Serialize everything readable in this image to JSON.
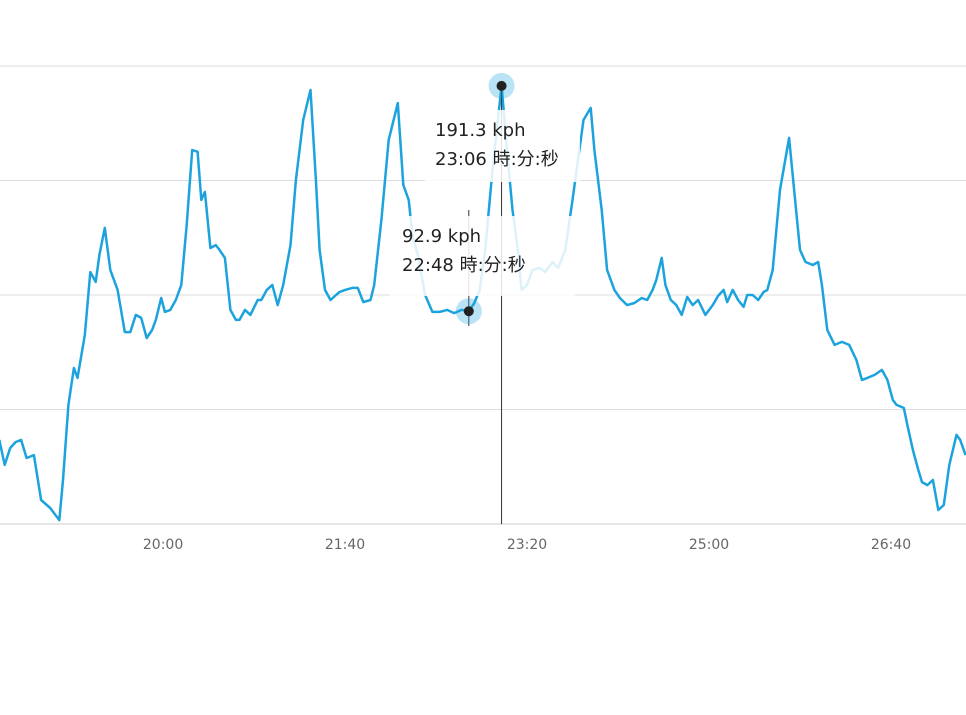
{
  "chart_data": {
    "type": "line",
    "color": "#1ca3dd",
    "grid": true,
    "xlim": [
      1110.4,
      1641.2
    ],
    "ylim": [
      0,
      228.8
    ],
    "yticks": [
      0,
      50,
      100,
      150,
      200
    ],
    "xticks": [
      {
        "value": 1200,
        "label": "20:00"
      },
      {
        "value": 1300,
        "label": "21:40"
      },
      {
        "value": 1400,
        "label": "23:20"
      },
      {
        "value": 1500,
        "label": "25:00"
      },
      {
        "value": 1600,
        "label": "26:40"
      }
    ],
    "x": [
      1110,
      1113,
      1116,
      1119,
      1122,
      1125,
      1129,
      1133,
      1138,
      1143,
      1145,
      1148,
      1151,
      1153,
      1157,
      1160,
      1163,
      1165,
      1168,
      1171,
      1175,
      1179,
      1182,
      1185,
      1188,
      1191,
      1194,
      1196,
      1199,
      1201,
      1204,
      1207,
      1210,
      1213,
      1216,
      1219,
      1221,
      1223,
      1226,
      1229,
      1231,
      1234,
      1237,
      1240,
      1242,
      1245,
      1248,
      1252,
      1254,
      1257,
      1260,
      1263,
      1266,
      1270,
      1273,
      1277,
      1281,
      1284,
      1286,
      1289,
      1292,
      1295,
      1297,
      1300,
      1304,
      1307,
      1310,
      1314,
      1316,
      1320,
      1324,
      1329,
      1332,
      1335,
      1337,
      1340,
      1344,
      1348,
      1352,
      1356,
      1360,
      1364,
      1368,
      1371,
      1374,
      1377,
      1381,
      1386,
      1389,
      1392,
      1395,
      1397,
      1400,
      1403,
      1407,
      1410,
      1414,
      1417,
      1421,
      1425,
      1428,
      1431,
      1435,
      1437,
      1441,
      1444,
      1448,
      1451,
      1455,
      1459,
      1463,
      1466,
      1469,
      1471,
      1474,
      1476,
      1479,
      1482,
      1485,
      1488,
      1491,
      1494,
      1498,
      1502,
      1505,
      1508,
      1510,
      1513,
      1516,
      1519,
      1521,
      1524,
      1527,
      1530,
      1532,
      1535,
      1539,
      1544,
      1547,
      1550,
      1553,
      1557,
      1560,
      1562,
      1565,
      1569,
      1573,
      1577,
      1581,
      1584,
      1587,
      1591,
      1595,
      1598,
      1601,
      1603,
      1607,
      1609,
      1612,
      1615,
      1617,
      1620,
      1623,
      1626,
      1629,
      1632,
      1636,
      1638,
      1641
    ],
    "values": [
      36.7,
      25.8,
      33.2,
      35.8,
      36.7,
      28.8,
      30.1,
      10.5,
      7.0,
      1.7,
      19.2,
      52.0,
      68.1,
      63.8,
      82.5,
      110.0,
      105.7,
      117.5,
      129.3,
      110.9,
      102.2,
      83.8,
      83.8,
      91.3,
      90.0,
      81.2,
      84.7,
      89.1,
      98.7,
      92.6,
      93.5,
      97.8,
      104.4,
      130.6,
      163.3,
      162.5,
      141.5,
      145.0,
      120.5,
      121.8,
      119.7,
      116.2,
      93.5,
      89.1,
      89.1,
      93.5,
      91.3,
      97.8,
      97.8,
      102.2,
      104.4,
      95.6,
      104.4,
      121.8,
      150.2,
      176.4,
      189.5,
      150.2,
      119.7,
      102.2,
      97.8,
      100.0,
      101.3,
      102.2,
      103.1,
      103.1,
      96.9,
      97.8,
      104.4,
      132.8,
      167.7,
      183.8,
      148.0,
      141.5,
      126.2,
      117.5,
      100.0,
      92.6,
      92.6,
      93.5,
      92.1,
      93.5,
      92.9,
      96.5,
      102.2,
      119.7,
      154.6,
      191.3,
      163.3,
      137.1,
      119.7,
      102.2,
      104.4,
      110.9,
      111.8,
      110.0,
      114.4,
      111.8,
      119.7,
      141.5,
      159.0,
      176.4,
      181.7,
      163.3,
      137.1,
      110.9,
      102.2,
      98.7,
      95.6,
      96.5,
      98.7,
      97.8,
      102.2,
      106.6,
      116.2,
      104.4,
      97.8,
      95.6,
      91.3,
      99.1,
      95.6,
      97.8,
      91.3,
      95.6,
      99.6,
      102.2,
      96.9,
      102.2,
      97.8,
      94.8,
      100.0,
      100.0,
      97.8,
      101.3,
      102.2,
      110.9,
      145.9,
      168.6,
      143.7,
      119.7,
      114.4,
      113.1,
      114.4,
      104.4,
      84.7,
      78.2,
      79.5,
      78.2,
      71.6,
      62.9,
      63.8,
      65.1,
      67.3,
      62.9,
      54.2,
      52.0,
      50.7,
      43.2,
      32.3,
      23.6,
      18.3,
      17.0,
      19.2,
      6.1,
      8.3,
      25.8,
      38.9,
      36.7,
      30.1
    ],
    "tooltips": [
      {
        "x": 1386,
        "value": 191.3,
        "value_label": "191.3 kph",
        "time_label": "23:06 時:分:秒"
      },
      {
        "x": 1368,
        "value": 92.9,
        "value_label": "92.9 kph",
        "time_label": "22:48 時:分:秒"
      }
    ]
  }
}
